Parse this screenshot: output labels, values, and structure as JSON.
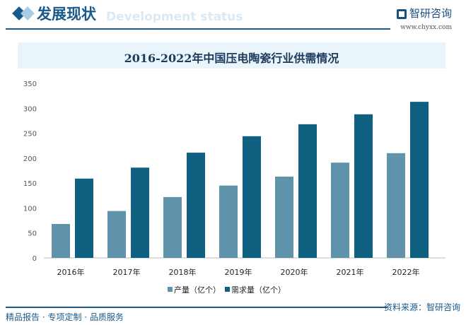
{
  "header": {
    "title": "发展现状",
    "subtitle": "Development status",
    "logo_text": "智研咨询",
    "url": "www.chyxx.com"
  },
  "footer": {
    "left": "精品报告 · 专项定制 · 品质服务",
    "source": "资料来源：智研咨询"
  },
  "colors": {
    "production": "#5f93ab",
    "demand": "#0f5f80",
    "accent": "#1a5a8a"
  },
  "chart_data": {
    "type": "bar",
    "title": "2016-2022年中国压电陶瓷行业供需情况",
    "categories": [
      "2016年",
      "2017年",
      "2018年",
      "2019年",
      "2020年",
      "2021年",
      "2022年"
    ],
    "series": [
      {
        "name": "产量（亿个）",
        "values": [
          68,
          94,
          122,
          145,
          163,
          191,
          210
        ]
      },
      {
        "name": "需求量（亿个）",
        "values": [
          159,
          181,
          211,
          244,
          268,
          288,
          313
        ]
      }
    ],
    "yticks": [
      0,
      50,
      100,
      150,
      200,
      250,
      300,
      350
    ],
    "ylim": [
      0,
      350
    ],
    "legend": "bottom",
    "grid": false
  }
}
